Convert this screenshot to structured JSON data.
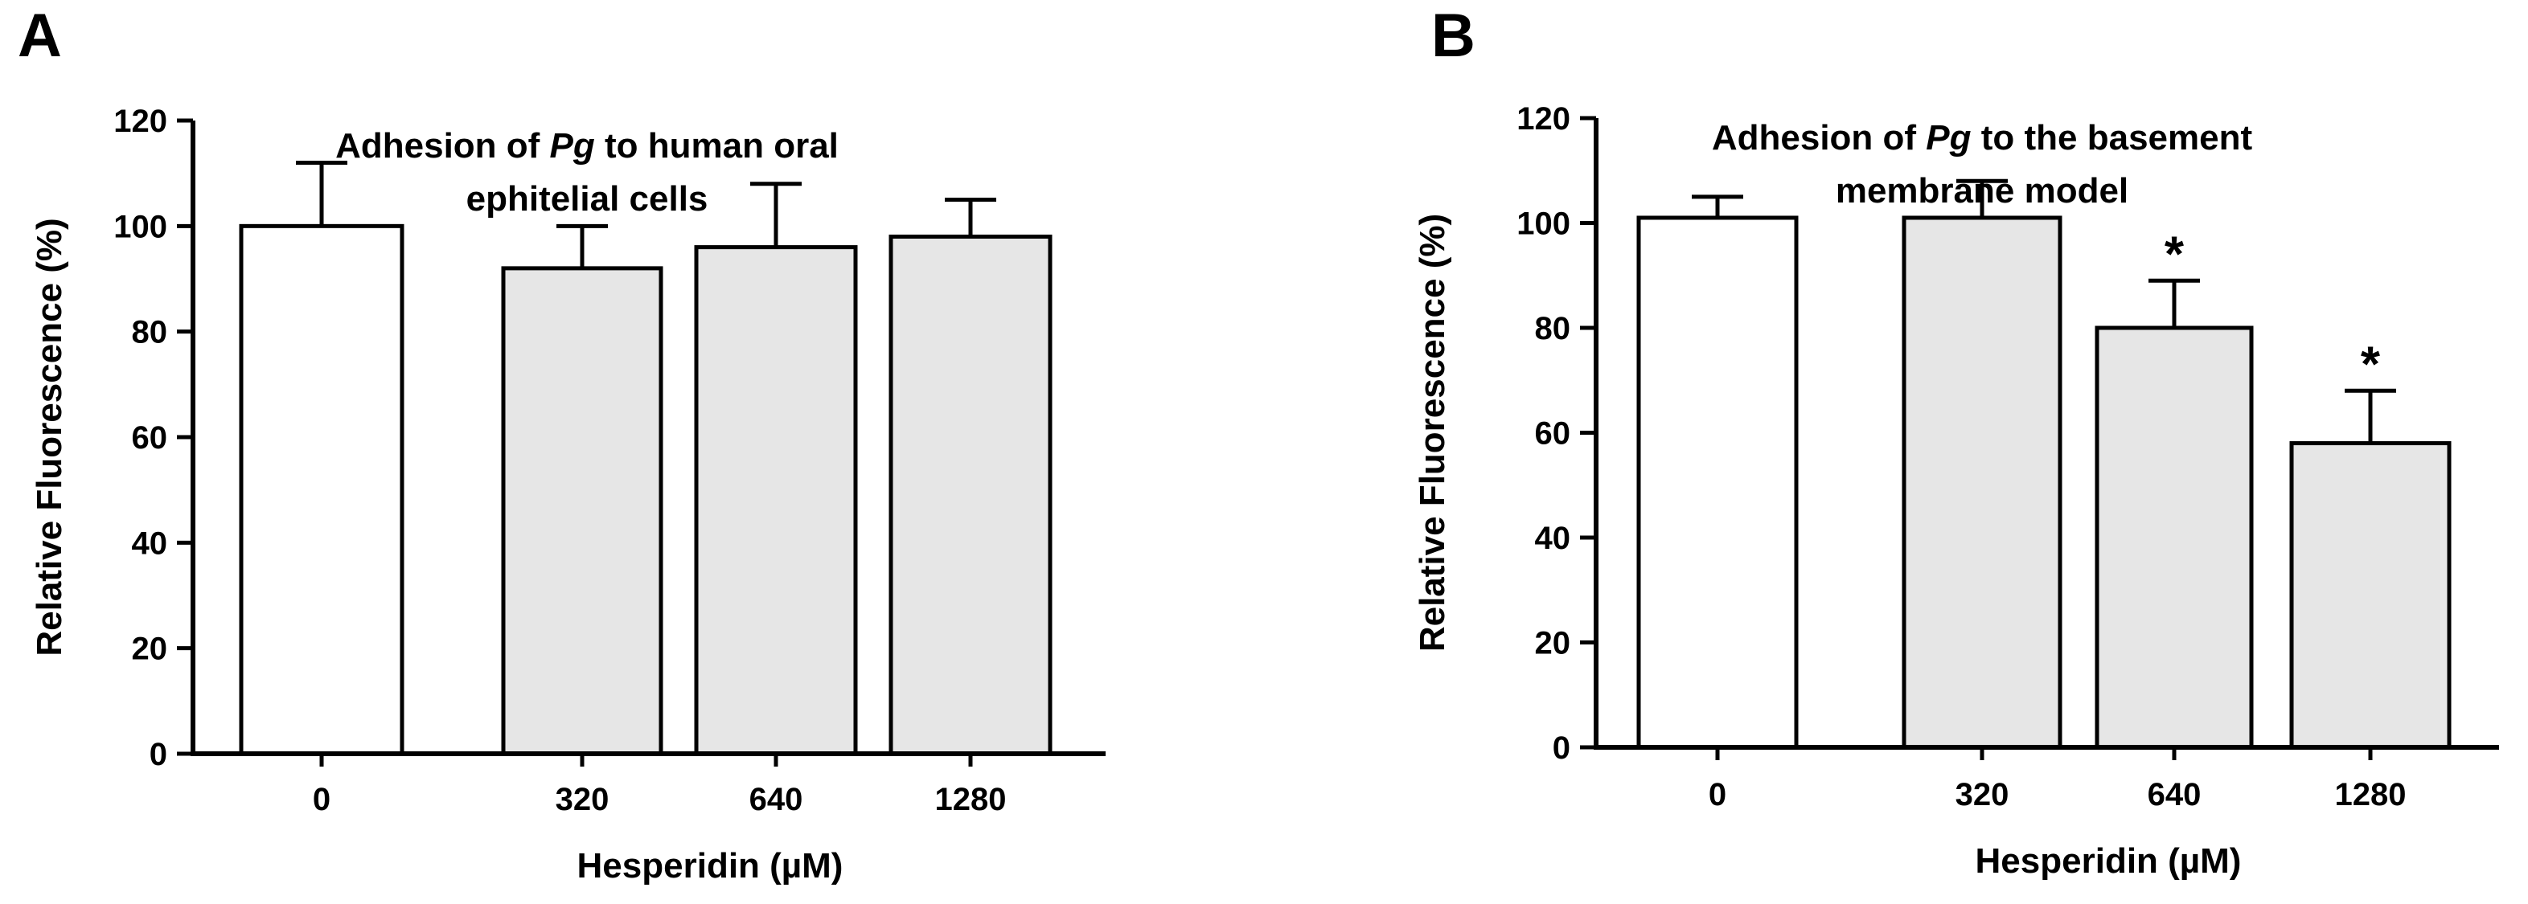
{
  "colors": {
    "control_bar": "#ffffff",
    "treated_bar": "#e6e6e6",
    "stroke": "#000000"
  },
  "chart_data": [
    {
      "panel": "A",
      "type": "bar",
      "title_parts": [
        "Adhesion of ",
        "Pg",
        " to human oral"
      ],
      "title_line2": "ephitelial cells",
      "ylabel": "Relative Fluorescence (%)",
      "xlabel": "Hesperidin (µM)",
      "ylim": [
        0,
        120
      ],
      "yticks": [
        "0",
        "20",
        "40",
        "60",
        "80",
        "100",
        "120"
      ],
      "categories": [
        "0",
        "320",
        "640",
        "1280"
      ],
      "values": [
        100,
        92,
        96,
        98
      ],
      "errors": [
        12,
        8,
        12,
        7
      ],
      "significance": [
        "",
        "",
        "",
        ""
      ]
    },
    {
      "panel": "B",
      "type": "bar",
      "title_parts": [
        "Adhesion of ",
        "Pg",
        " to the basement"
      ],
      "title_line2": "membrane model",
      "ylabel": "Relative Fluorescence (%)",
      "xlabel": "Hesperidin (µM)",
      "ylim": [
        0,
        120
      ],
      "yticks": [
        "0",
        "20",
        "40",
        "60",
        "80",
        "100",
        "120"
      ],
      "categories": [
        "0",
        "320",
        "640",
        "1280"
      ],
      "values": [
        101,
        101,
        80,
        58
      ],
      "errors": [
        4,
        7,
        9,
        10
      ],
      "significance": [
        "",
        "",
        "*",
        "*"
      ]
    }
  ]
}
